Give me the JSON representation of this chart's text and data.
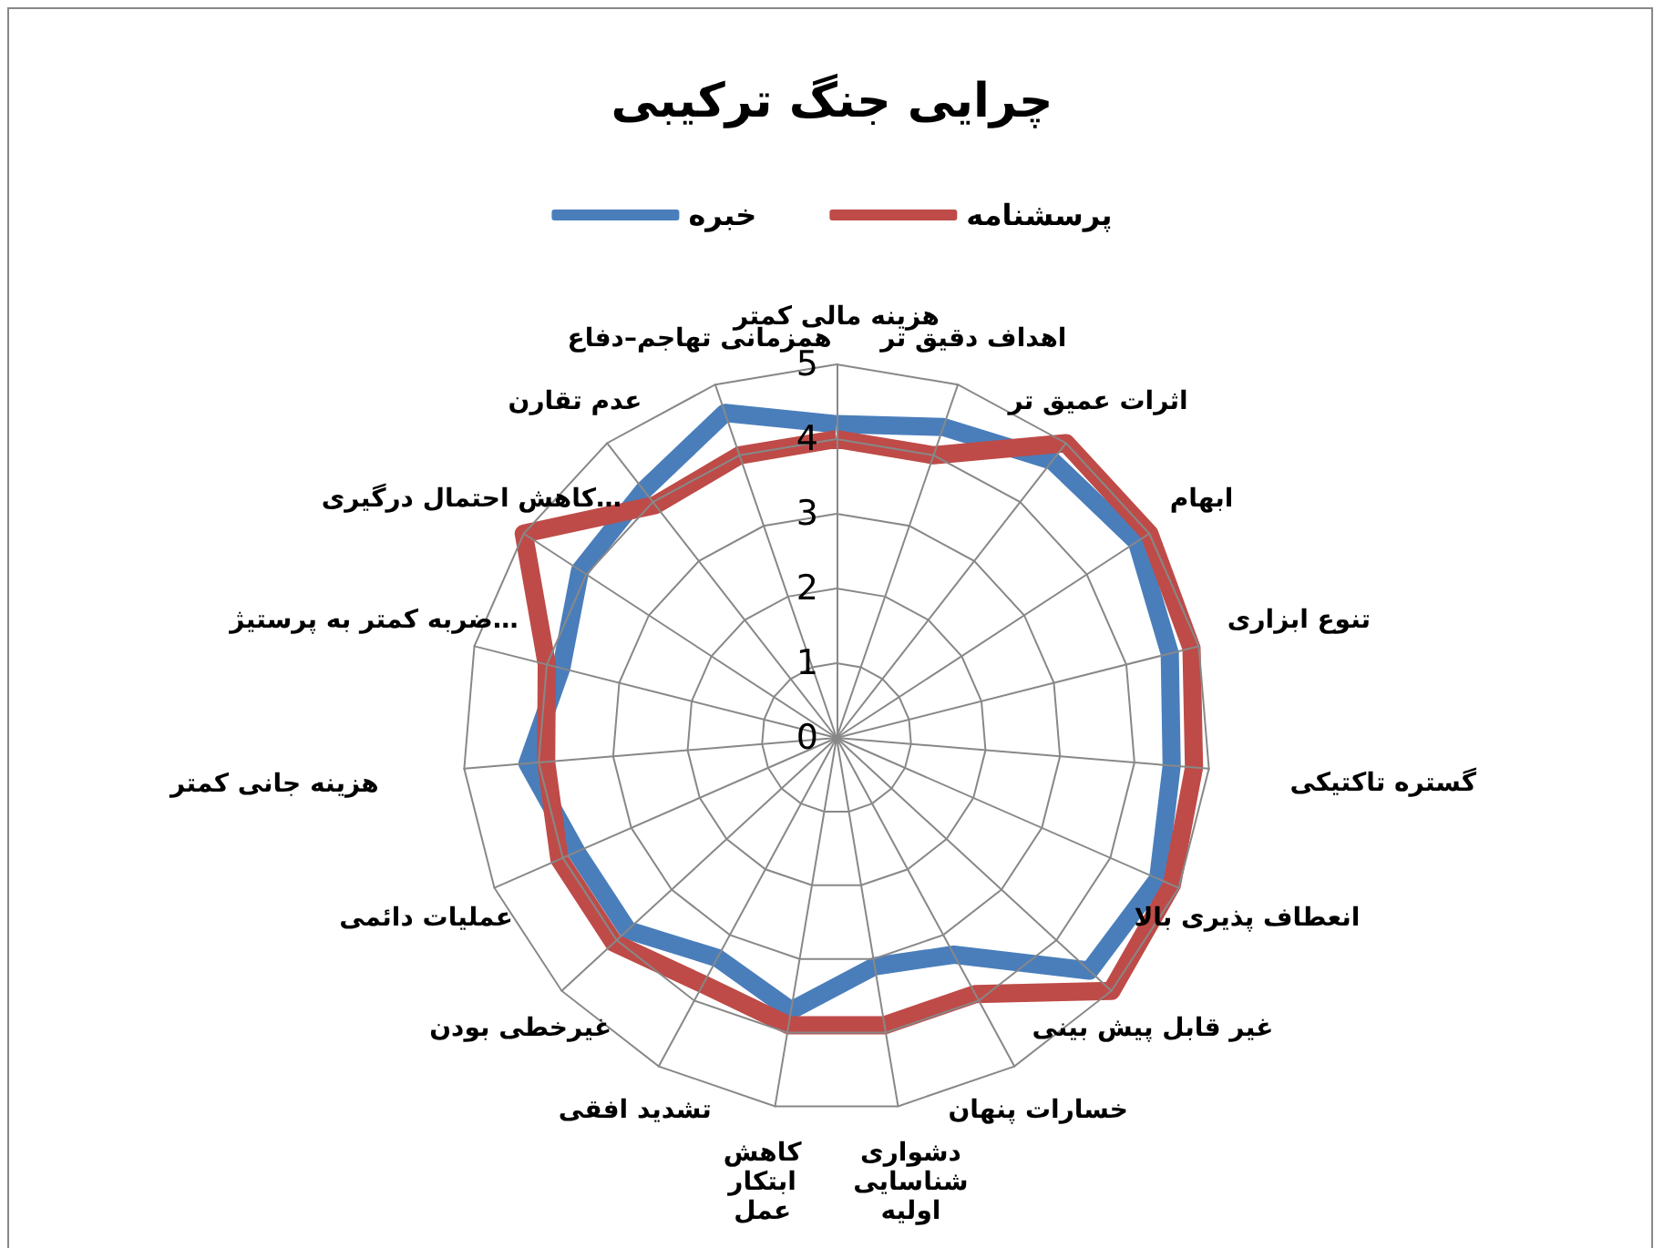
{
  "chart_data": {
    "type": "radar",
    "title": "چرایی جنگ ترکیبی",
    "categories": [
      "هزینه مالی کمتر",
      "اهداف دقیق تر",
      "اثرات عمیق تر",
      "ابهام",
      "تنوع ابزاری",
      "گستره تاکتیکی",
      "انعطاف پذیری بالا",
      "غیر قابل پیش بینی",
      "خسارات پنهان",
      "دشواری شناسایی اولیه",
      "کاهش ابتکار عمل",
      "تشدید افقی",
      "غیرخطی بودن",
      "عملیات دائمی",
      "هزینه جانی کمتر",
      "ضربه کمتر به پرستیژ…",
      "کاهش احتمال درگیری…",
      "عدم تقارن",
      "همزمانی تهاجم–دفاع"
    ],
    "series": [
      {
        "name": "خبره",
        "color": "#4a7ebb",
        "values": [
          4.2,
          4.4,
          4.7,
          4.8,
          4.6,
          4.5,
          4.7,
          4.6,
          3.3,
          3.1,
          3.7,
          3.35,
          3.8,
          3.8,
          4.15,
          3.8,
          4.1,
          4.2,
          4.6
        ]
      },
      {
        "name": "پرسشنامه",
        "color": "#be4b48",
        "values": [
          4.0,
          4.0,
          5.0,
          5.0,
          4.9,
          4.8,
          4.9,
          5.0,
          3.9,
          3.9,
          3.9,
          3.75,
          4.05,
          4.05,
          3.9,
          4.0,
          5.0,
          3.95,
          4.0
        ]
      }
    ],
    "ylim": [
      0,
      5
    ],
    "yticks": [
      0,
      1,
      2,
      3,
      4,
      5
    ],
    "grid": true,
    "legend": "top",
    "marker": "none",
    "line_style": "solid"
  }
}
